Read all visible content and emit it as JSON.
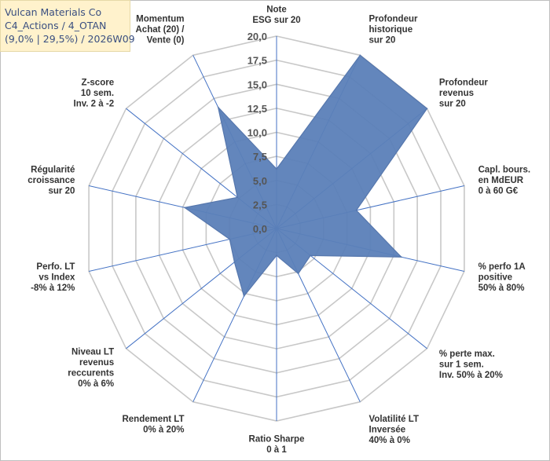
{
  "title_box": {
    "line1": "Vulcan Materials Co",
    "line2": "C4_Actions / 4_OTAN",
    "line3": "(9,0% | 29,5%) / 2026W09"
  },
  "colors": {
    "area_fill": "#5b7fb8",
    "area_stroke": "#5677ad",
    "spoke": "#4472c4",
    "grid": "#c8c8c8",
    "title_bg": "#fff2cc",
    "title_text": "#3a4f80"
  },
  "chart_data": {
    "type": "radar",
    "rmin": 0,
    "rmax": 20,
    "ticks": [
      "0,0",
      "2,5",
      "5,0",
      "7,5",
      "10,0",
      "12,5",
      "15,0",
      "17,5",
      "20,0"
    ],
    "axes": [
      {
        "label": [
          "Note",
          "ESG sur 20"
        ],
        "value": 6.2
      },
      {
        "label": [
          "Profondeur",
          "historique",
          "sur 20"
        ],
        "value": 20
      },
      {
        "label": [
          "Profondeur",
          "revenus",
          "sur 20"
        ],
        "value": 20
      },
      {
        "label": [
          "Capl. bours.",
          "en MdEUR",
          "0 à 60 G€"
        ],
        "value": 8.5
      },
      {
        "label": [
          "% perfo 1A",
          "positive",
          "50% à 80%"
        ],
        "value": 13.3
      },
      {
        "label": [
          "% perte max.",
          "sur 1 sem.",
          "Inv. 50% à 20%"
        ],
        "value": 4.5
      },
      {
        "label": [
          "Volatilité LT",
          "Inversée",
          "40% à 0%"
        ],
        "value": 5.2
      },
      {
        "label": [
          "Ratio Sharpe",
          "0 à 1"
        ],
        "value": 2.8
      },
      {
        "label": [
          "Rendement LT",
          "0% à 20%"
        ],
        "value": 7.8
      },
      {
        "label": [
          "Niveau LT",
          "revenus",
          "reccurents",
          "0% à 6%"
        ],
        "value": 5.6
      },
      {
        "label": [
          "Perfo. LT",
          "vs Index",
          "-8% à 12%"
        ],
        "value": 5.0
      },
      {
        "label": [
          "Régularité",
          "croissance",
          "sur 20"
        ],
        "value": 9.8
      },
      {
        "label": [
          "Z-score",
          "10 sem.",
          "Inv. 2 à -2"
        ],
        "value": 5.2
      },
      {
        "label": [
          "Momentum",
          "Achat (20) /",
          "Vente (0)"
        ],
        "value": 14.0
      }
    ]
  }
}
